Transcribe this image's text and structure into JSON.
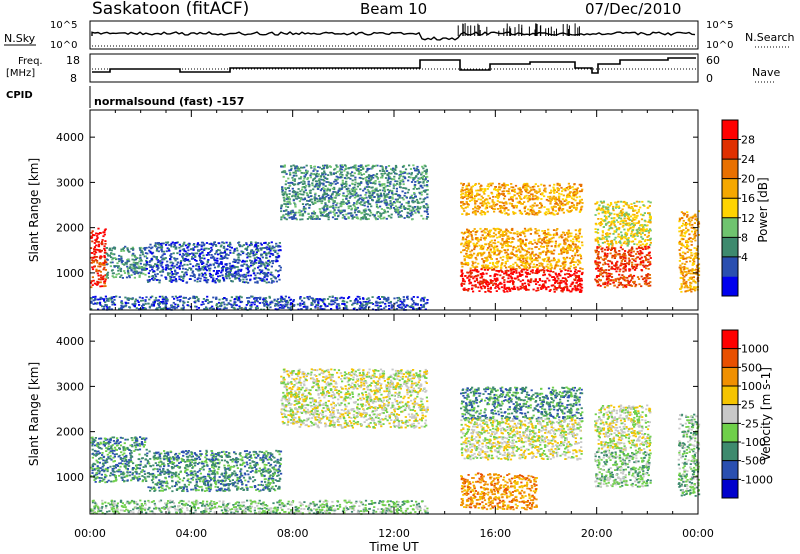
{
  "header": {
    "station": "Saskatoon (fitACF)",
    "beam": "Beam 10",
    "date": "07/Dec/2010"
  },
  "top_panels": {
    "nsky_label": "N.Sky",
    "nsky_ticks": [
      "10^5",
      "10^0"
    ],
    "nsearch_label": "N.Search",
    "nsearch_ticks": [
      "10^5",
      "10^0"
    ],
    "freq_label": "Freq.",
    "freq_unit": "[MHz]",
    "freq_ticks": [
      "18",
      "8"
    ],
    "nave_label": "Nave",
    "nave_ticks": [
      "60",
      "0"
    ],
    "cpid_label": "CPID",
    "cpid_value": "normalsound (fast) -157"
  },
  "chart_data": [
    {
      "type": "heatmap",
      "name": "power",
      "ylabel": "Slant Range [km]",
      "ylim": [
        180,
        4600
      ],
      "yticks": [
        1000,
        2000,
        3000,
        4000
      ],
      "xlim": [
        0,
        24
      ],
      "xticks": [
        "00:00",
        "04:00",
        "08:00",
        "12:00",
        "16:00",
        "20:00",
        "00:00"
      ],
      "colorbar": {
        "label": "Power [dB]",
        "ticks": [
          "28",
          "24",
          "20",
          "16",
          "12",
          "8",
          "4"
        ],
        "colors": [
          "#0000ee",
          "#2a4fb0",
          "#3e8a6e",
          "#6fc46f",
          "#ffd400",
          "#f5a800",
          "#e87000",
          "#e03000",
          "#ff0000"
        ]
      },
      "regions": [
        {
          "t0": 0.0,
          "t1": 0.6,
          "r0": 1300,
          "r1": 2000,
          "level": 8
        },
        {
          "t0": 0.0,
          "t1": 0.6,
          "r0": 700,
          "r1": 1300,
          "level": 7
        },
        {
          "t0": 0.6,
          "t1": 2.2,
          "r0": 900,
          "r1": 1600,
          "level": 2
        },
        {
          "t0": 2.2,
          "t1": 7.5,
          "r0": 800,
          "r1": 1700,
          "level": 1
        },
        {
          "t0": 7.5,
          "t1": 13.3,
          "r0": 2200,
          "r1": 3400,
          "level": 2
        },
        {
          "t0": 0.0,
          "t1": 13.3,
          "r0": 200,
          "r1": 500,
          "level": 1
        },
        {
          "t0": 14.6,
          "t1": 19.4,
          "r0": 2300,
          "r1": 3000,
          "level": 5
        },
        {
          "t0": 14.6,
          "t1": 19.4,
          "r0": 1100,
          "r1": 2000,
          "level": 5
        },
        {
          "t0": 14.6,
          "t1": 19.4,
          "r0": 600,
          "r1": 1100,
          "level": 8
        },
        {
          "t0": 19.9,
          "t1": 22.1,
          "r0": 1600,
          "r1": 2600,
          "level": 4
        },
        {
          "t0": 19.9,
          "t1": 22.1,
          "r0": 700,
          "r1": 1600,
          "level": 7
        },
        {
          "t0": 23.2,
          "t1": 24.0,
          "r0": 600,
          "r1": 2400,
          "level": 5
        }
      ]
    },
    {
      "type": "heatmap",
      "name": "velocity",
      "ylabel": "Slant Range [km]",
      "ylim": [
        180,
        4600
      ],
      "yticks": [
        1000,
        2000,
        3000,
        4000
      ],
      "xlim": [
        0,
        24
      ],
      "xticks": [
        "00:00",
        "04:00",
        "08:00",
        "12:00",
        "16:00",
        "20:00",
        "00:00"
      ],
      "xlabel": "Time UT",
      "colorbar": {
        "label": "Velocity [m s-1]",
        "ticks": [
          "1000",
          "500",
          "100",
          "25",
          "-25",
          "-100",
          "-500",
          "-1000"
        ],
        "colors": [
          "#0000cc",
          "#2a4fb0",
          "#3e8a6e",
          "#6fd04a",
          "#c8c8c8",
          "#f5c400",
          "#f09000",
          "#e85000",
          "#ff0000"
        ]
      },
      "regions": [
        {
          "t0": 0.0,
          "t1": 2.2,
          "r0": 900,
          "r1": 1900,
          "level": 2
        },
        {
          "t0": 2.2,
          "t1": 7.5,
          "r0": 700,
          "r1": 1600,
          "level": 2
        },
        {
          "t0": 7.5,
          "t1": 13.3,
          "r0": 2100,
          "r1": 3400,
          "level": 4
        },
        {
          "t0": 0.0,
          "t1": 13.3,
          "r0": 200,
          "r1": 500,
          "level": 3
        },
        {
          "t0": 14.6,
          "t1": 19.4,
          "r0": 2300,
          "r1": 3000,
          "level": 2
        },
        {
          "t0": 14.6,
          "t1": 19.4,
          "r0": 1400,
          "r1": 2300,
          "level": 4
        },
        {
          "t0": 14.6,
          "t1": 17.6,
          "r0": 300,
          "r1": 1100,
          "level": 6
        },
        {
          "t0": 19.9,
          "t1": 22.1,
          "r0": 1600,
          "r1": 2600,
          "level": 4
        },
        {
          "t0": 19.9,
          "t1": 22.1,
          "r0": 800,
          "r1": 1600,
          "level": 3
        },
        {
          "t0": 23.2,
          "t1": 24.0,
          "r0": 600,
          "r1": 2400,
          "level": 3
        }
      ]
    }
  ]
}
